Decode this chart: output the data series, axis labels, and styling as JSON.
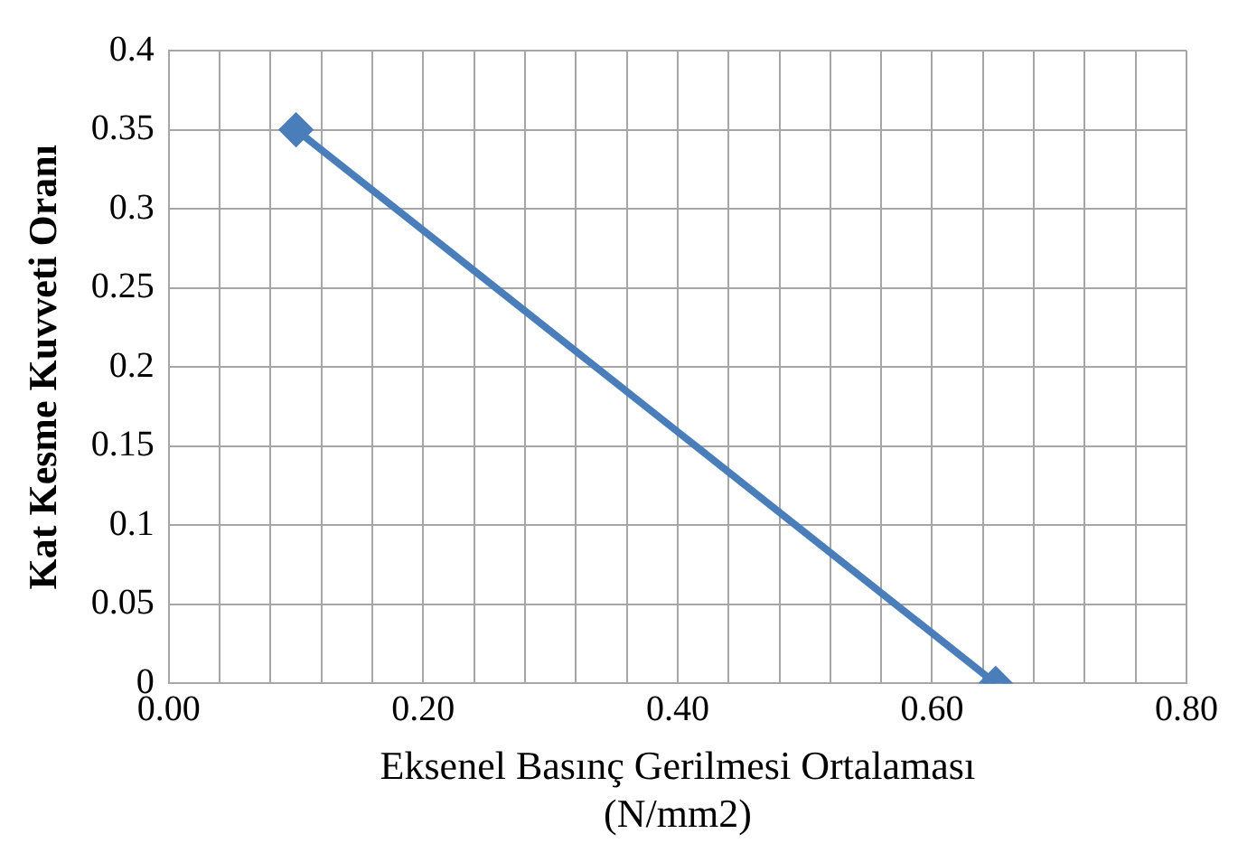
{
  "chart_data": {
    "type": "line",
    "xlabel": "Eksenel Basınç Gerilmesi Ortalaması\n(N/mm2)",
    "ylabel": "Kat Kesme Kuvveti Oranı",
    "x": [
      0.1,
      0.65
    ],
    "series": [
      {
        "color": "#4a7ebb",
        "values": [
          0.35,
          0
        ]
      }
    ],
    "xlim": [
      0,
      0.8
    ],
    "xticks": [
      {
        "value": 0,
        "label": "0.00"
      },
      {
        "value": 0.04,
        "label": null
      },
      {
        "value": 0.08,
        "label": null
      },
      {
        "value": 0.12,
        "label": null
      },
      {
        "value": 0.16,
        "label": null
      },
      {
        "value": 0.2,
        "label": "0.20"
      },
      {
        "value": 0.24,
        "label": null
      },
      {
        "value": 0.28,
        "label": null
      },
      {
        "value": 0.32,
        "label": null
      },
      {
        "value": 0.36,
        "label": null
      },
      {
        "value": 0.4,
        "label": "0.40"
      },
      {
        "value": 0.44,
        "label": null
      },
      {
        "value": 0.48,
        "label": null
      },
      {
        "value": 0.52,
        "label": null
      },
      {
        "value": 0.56,
        "label": null
      },
      {
        "value": 0.6,
        "label": "0.60"
      },
      {
        "value": 0.64,
        "label": null
      },
      {
        "value": 0.68,
        "label": null
      },
      {
        "value": 0.72,
        "label": null
      },
      {
        "value": 0.76,
        "label": null
      },
      {
        "value": 0.8,
        "label": "0.80"
      }
    ],
    "ylim": [
      0,
      0.4
    ],
    "yticks": [
      0,
      0.05,
      0.1,
      0.15,
      0.2,
      0.25,
      0.3,
      0.35,
      0.4
    ],
    "grid": true,
    "legend": false,
    "marker": "diamond",
    "line_style": "solid"
  }
}
